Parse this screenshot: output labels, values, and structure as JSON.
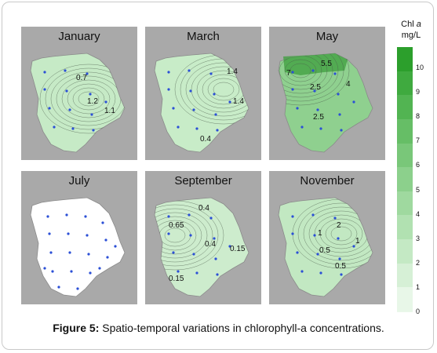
{
  "panels": [
    {
      "month": "January",
      "fill": "#c6eac6",
      "labels": [
        "0.7",
        "1.2",
        "1.1"
      ],
      "stations": 13
    },
    {
      "month": "March",
      "fill": "#c8ecc8",
      "labels": [
        "1.4",
        "1.4",
        "0.4"
      ],
      "stations": 13
    },
    {
      "month": "May",
      "fill": "#8fd08f",
      "labels": [
        "7",
        "5.5",
        "4",
        "2.5",
        "2.5"
      ],
      "stations": 13
    },
    {
      "month": "July",
      "fill": "#ffffff",
      "labels": [],
      "stations": 20
    },
    {
      "month": "September",
      "fill": "#cdeccd",
      "labels": [
        "0.4",
        "0.65",
        "0.4",
        "0.15",
        "0.15"
      ],
      "stations": 13
    },
    {
      "month": "November",
      "fill": "#c2e8c2",
      "labels": [
        "2",
        "1",
        "0.5",
        "0.5",
        "1"
      ],
      "stations": 13
    }
  ],
  "legend": {
    "title_line1": "Chl",
    "title_italic": "a",
    "title_line2": "mg/L",
    "ticks": [
      "10",
      "9",
      "8",
      "7",
      "6",
      "5",
      "4",
      "3",
      "2",
      "1",
      "0"
    ],
    "colors": [
      "#e8f7e8",
      "#d6f0d6",
      "#c4e9c4",
      "#b1e1b1",
      "#9fd99f",
      "#8cd08c",
      "#79c779",
      "#66be66",
      "#52b452",
      "#3faa3f",
      "#2c9f2c"
    ]
  },
  "caption": {
    "label": "Figure 5:",
    "text": " Spatio-temporal variations in chlorophyll-a concentrations."
  }
}
